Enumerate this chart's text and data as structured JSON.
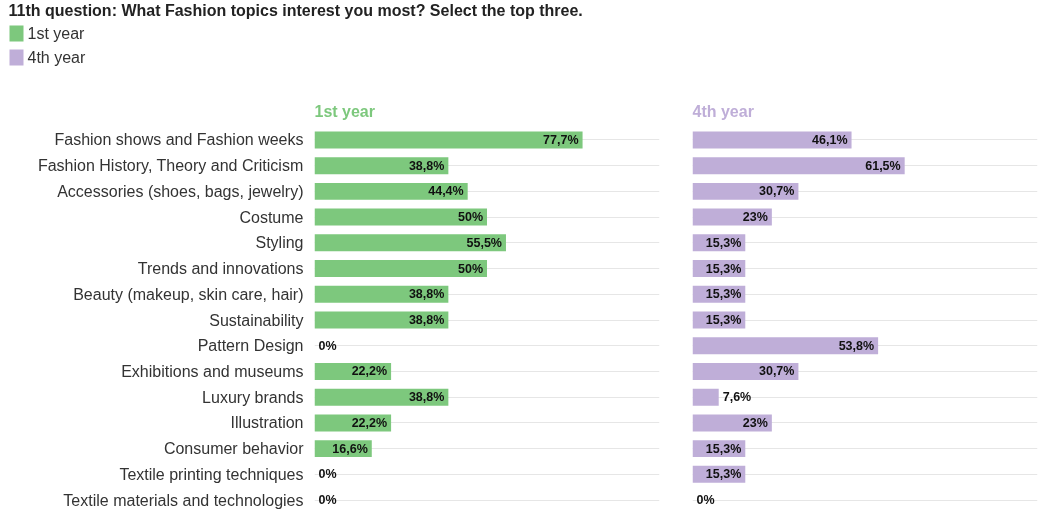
{
  "chart_data": [
    {
      "type": "bar",
      "orientation": "horizontal",
      "title": "11th question: What Fashion topics interest you most? Select the top three.",
      "subtitle": "1st year",
      "categories": [
        "Fashion shows and Fashion weeks",
        "Fashion History, Theory and Criticism",
        "Accessories (shoes, bags, jewelry)",
        "Costume",
        "Styling",
        "Trends and innovations",
        "Beauty (makeup, skin care, hair)",
        "Sustainability",
        "Pattern Design",
        "Exhibitions and museums",
        "Luxury brands",
        "Illustration",
        "Consumer behavior",
        "Textile printing techniques",
        "Textile materials and technologies"
      ],
      "series": [
        {
          "name": "1st year",
          "color": "#7dc87d",
          "values": [
            77.7,
            38.8,
            44.4,
            50,
            55.5,
            50,
            38.8,
            38.8,
            0,
            22.2,
            38.8,
            22.2,
            16.6,
            0,
            0
          ],
          "value_labels": [
            "77,7%",
            "38,8%",
            "44,4%",
            "50%",
            "55,5%",
            "50%",
            "38,8%",
            "38,8%",
            "0%",
            "22,2%",
            "38,8%",
            "22,2%",
            "16,6%",
            "0%",
            "0%"
          ]
        }
      ],
      "xlim": [
        0,
        100
      ],
      "grid": "y",
      "legend": "top left",
      "tick_labels": "y"
    },
    {
      "type": "bar",
      "orientation": "horizontal",
      "subtitle": "4th year",
      "categories": [
        null,
        null,
        null,
        null,
        null,
        null,
        null,
        null,
        null,
        null,
        null,
        null,
        null,
        null,
        null
      ],
      "series": [
        {
          "name": "4th year",
          "color": "#bfaed8",
          "values": [
            46.1,
            61.5,
            30.7,
            23,
            15.3,
            15.3,
            15.3,
            15.3,
            53.8,
            30.7,
            7.6,
            23,
            15.3,
            15.3,
            0
          ],
          "value_labels": [
            "46,1%",
            "61,5%",
            "30,7%",
            "23%",
            "15,3%",
            "15,3%",
            "15,3%",
            "15,3%",
            "53,8%",
            "30,7%",
            "7,6%",
            "23%",
            "15,3%",
            "15,3%",
            "0%"
          ]
        }
      ],
      "xlim": [
        0,
        100
      ],
      "grid": "y",
      "legend": "top left",
      "tick_labels": false
    }
  ]
}
